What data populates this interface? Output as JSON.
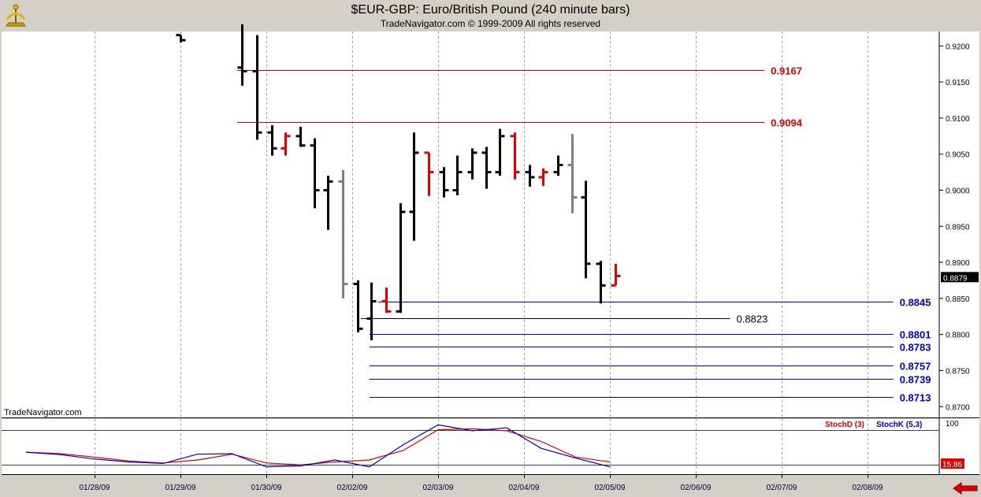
{
  "header": {
    "title": "$EUR-GBP:  Euro/British Pound  (240 minute bars)",
    "copyright": "TradeNavigator.com © 1999-2009 All rights reserved",
    "logo_icon": "sextant-icon"
  },
  "colors": {
    "price_up": "#000000",
    "price_alt": "#e00000",
    "price_gray": "#808080",
    "resistance": "#e00000",
    "support": "#0000cc",
    "mid_line": "#000000",
    "stoch_d": "#e00000",
    "stoch_k": "#0000cc",
    "panel_bg": "#ffffff",
    "frame_bg": "#d4d0c8"
  },
  "watermark": "TradeNavigator.com",
  "nav_icon": "red-left-arrow-icon",
  "chart_data": [
    {
      "type": "ohlc",
      "yaxis_ticks": [
        "0.9200",
        "0.9150",
        "0.9100",
        "0.9050",
        "0.9000",
        "0.8950",
        "0.8900",
        "0.8850",
        "0.8800",
        "0.8750",
        "0.8700"
      ],
      "ylim": [
        0.8685,
        0.922
      ],
      "last_price": "0.8879",
      "xaxis_ticks": [
        "01/28/09",
        "01/29/09",
        "01/30/09",
        "02/02/09",
        "02/03/09",
        "02/04/09",
        "02/05/09",
        "02/06/09",
        "02/07/09",
        "02/08/09"
      ],
      "bars": [
        {
          "i": 0.0,
          "o": 0.9215,
          "h": 0.9215,
          "l": 0.9205,
          "c": 0.9208,
          "color": "black"
        },
        {
          "i": 0.72,
          "o": 0.917,
          "h": 0.923,
          "l": 0.9145,
          "c": 0.9165,
          "color": "black"
        },
        {
          "i": 0.89,
          "o": 0.9165,
          "h": 0.9215,
          "l": 0.907,
          "c": 0.908,
          "color": "black"
        },
        {
          "i": 1.06,
          "o": 0.908,
          "h": 0.909,
          "l": 0.9048,
          "c": 0.9058,
          "color": "black"
        },
        {
          "i": 1.22,
          "o": 0.9058,
          "h": 0.908,
          "l": 0.9048,
          "c": 0.9075,
          "color": "red"
        },
        {
          "i": 1.39,
          "o": 0.9075,
          "h": 0.9088,
          "l": 0.906,
          "c": 0.9062,
          "color": "black"
        },
        {
          "i": 1.56,
          "o": 0.9062,
          "h": 0.9072,
          "l": 0.8975,
          "c": 0.9,
          "color": "black"
        },
        {
          "i": 1.72,
          "o": 0.9,
          "h": 0.902,
          "l": 0.8945,
          "c": 0.9012,
          "color": "black"
        },
        {
          "i": 1.89,
          "o": 0.9012,
          "h": 0.9028,
          "l": 0.885,
          "c": 0.887,
          "color": "gray"
        },
        {
          "i": 2.06,
          "o": 0.887,
          "h": 0.8875,
          "l": 0.8803,
          "c": 0.8808,
          "color": "black"
        },
        {
          "i": 2.22,
          "o": 0.8822,
          "h": 0.8872,
          "l": 0.8792,
          "c": 0.8846,
          "color": "black"
        },
        {
          "i": 2.39,
          "o": 0.8846,
          "h": 0.8865,
          "l": 0.883,
          "c": 0.8832,
          "color": "red"
        },
        {
          "i": 2.56,
          "o": 0.8832,
          "h": 0.8982,
          "l": 0.883,
          "c": 0.897,
          "color": "black"
        },
        {
          "i": 2.72,
          "o": 0.897,
          "h": 0.908,
          "l": 0.893,
          "c": 0.9052,
          "color": "black"
        },
        {
          "i": 2.89,
          "o": 0.9052,
          "h": 0.9052,
          "l": 0.8992,
          "c": 0.9025,
          "color": "red"
        },
        {
          "i": 3.06,
          "o": 0.9025,
          "h": 0.9032,
          "l": 0.899,
          "c": 0.9,
          "color": "black"
        },
        {
          "i": 3.22,
          "o": 0.9,
          "h": 0.9048,
          "l": 0.8993,
          "c": 0.9025,
          "color": "black"
        },
        {
          "i": 3.39,
          "o": 0.9025,
          "h": 0.9058,
          "l": 0.9015,
          "c": 0.9052,
          "color": "black"
        },
        {
          "i": 3.56,
          "o": 0.9052,
          "h": 0.906,
          "l": 0.9002,
          "c": 0.9025,
          "color": "black"
        },
        {
          "i": 3.72,
          "o": 0.9025,
          "h": 0.9085,
          "l": 0.902,
          "c": 0.9075,
          "color": "black"
        },
        {
          "i": 3.89,
          "o": 0.9075,
          "h": 0.908,
          "l": 0.9015,
          "c": 0.9025,
          "color": "red"
        },
        {
          "i": 4.06,
          "o": 0.9025,
          "h": 0.9035,
          "l": 0.9005,
          "c": 0.9018,
          "color": "black"
        },
        {
          "i": 4.22,
          "o": 0.9018,
          "h": 0.903,
          "l": 0.9006,
          "c": 0.9025,
          "color": "red"
        },
        {
          "i": 4.39,
          "o": 0.9025,
          "h": 0.9048,
          "l": 0.902,
          "c": 0.9035,
          "color": "black"
        },
        {
          "i": 4.56,
          "o": 0.9035,
          "h": 0.9078,
          "l": 0.8968,
          "c": 0.899,
          "color": "gray"
        },
        {
          "i": 4.72,
          "o": 0.899,
          "h": 0.9013,
          "l": 0.8878,
          "c": 0.8898,
          "color": "black"
        },
        {
          "i": 4.89,
          "o": 0.8898,
          "h": 0.8902,
          "l": 0.8843,
          "c": 0.8868,
          "color": "black"
        },
        {
          "i": 5.06,
          "o": 0.8868,
          "h": 0.8898,
          "l": 0.8868,
          "c": 0.8881,
          "color": "red"
        }
      ],
      "levels": [
        {
          "value": 0.9167,
          "label": "0.9167",
          "color": "red",
          "start": 0.66,
          "end": 6.8
        },
        {
          "value": 0.9094,
          "label": "0.9094",
          "color": "red",
          "start": 0.66,
          "end": 6.8
        },
        {
          "value": 0.8845,
          "label": "0.8845",
          "color": "blue",
          "start": 2.3,
          "end": 8.3
        },
        {
          "value": 0.8823,
          "label": "0.8823",
          "color": "black",
          "start": 2.1,
          "end": 6.4
        },
        {
          "value": 0.8801,
          "label": "0.8801",
          "color": "blue",
          "start": 2.2,
          "end": 8.3
        },
        {
          "value": 0.8783,
          "label": "0.8783",
          "color": "blue",
          "start": 2.2,
          "end": 8.3
        },
        {
          "value": 0.8757,
          "label": "0.8757",
          "color": "blue",
          "start": 2.2,
          "end": 8.3
        },
        {
          "value": 0.8739,
          "label": "0.8739",
          "color": "blue",
          "start": 2.2,
          "end": 8.3
        },
        {
          "value": 0.8713,
          "label": "0.8713",
          "color": "blue",
          "start": 2.2,
          "end": 8.3
        }
      ]
    },
    {
      "type": "line",
      "ylim": [
        -5,
        108
      ],
      "yaxis_ticks": [
        "100"
      ],
      "ref_lines": [
        85,
        15
      ],
      "last_value": "15.86",
      "legend": [
        {
          "label": "StochD (3)",
          "color": "red"
        },
        {
          "label": "StochK (5,3)",
          "color": "blue"
        }
      ],
      "series": [
        {
          "name": "StochD (3)",
          "color": "red",
          "x": [
            -1.8,
            -1.4,
            -1.0,
            -0.6,
            -0.2,
            0.2,
            0.6,
            1.0,
            1.4,
            1.8,
            2.2,
            2.6,
            3.0,
            3.4,
            3.8,
            4.2,
            4.6,
            5.0
          ],
          "y": [
            40,
            37,
            30,
            22,
            18,
            24,
            36,
            18,
            14,
            20,
            24,
            44,
            86,
            88,
            84,
            62,
            30,
            20
          ]
        },
        {
          "name": "StochK (5,3)",
          "color": "blue",
          "x": [
            -1.8,
            -1.4,
            -1.0,
            -0.6,
            -0.2,
            0.2,
            0.6,
            1.0,
            1.4,
            1.8,
            2.2,
            2.6,
            3.0,
            3.4,
            3.8,
            4.2,
            4.6,
            5.0
          ],
          "y": [
            40,
            35,
            26,
            20,
            17,
            36,
            37,
            10,
            12,
            24,
            10,
            56,
            96,
            84,
            90,
            48,
            28,
            10
          ]
        }
      ]
    }
  ]
}
